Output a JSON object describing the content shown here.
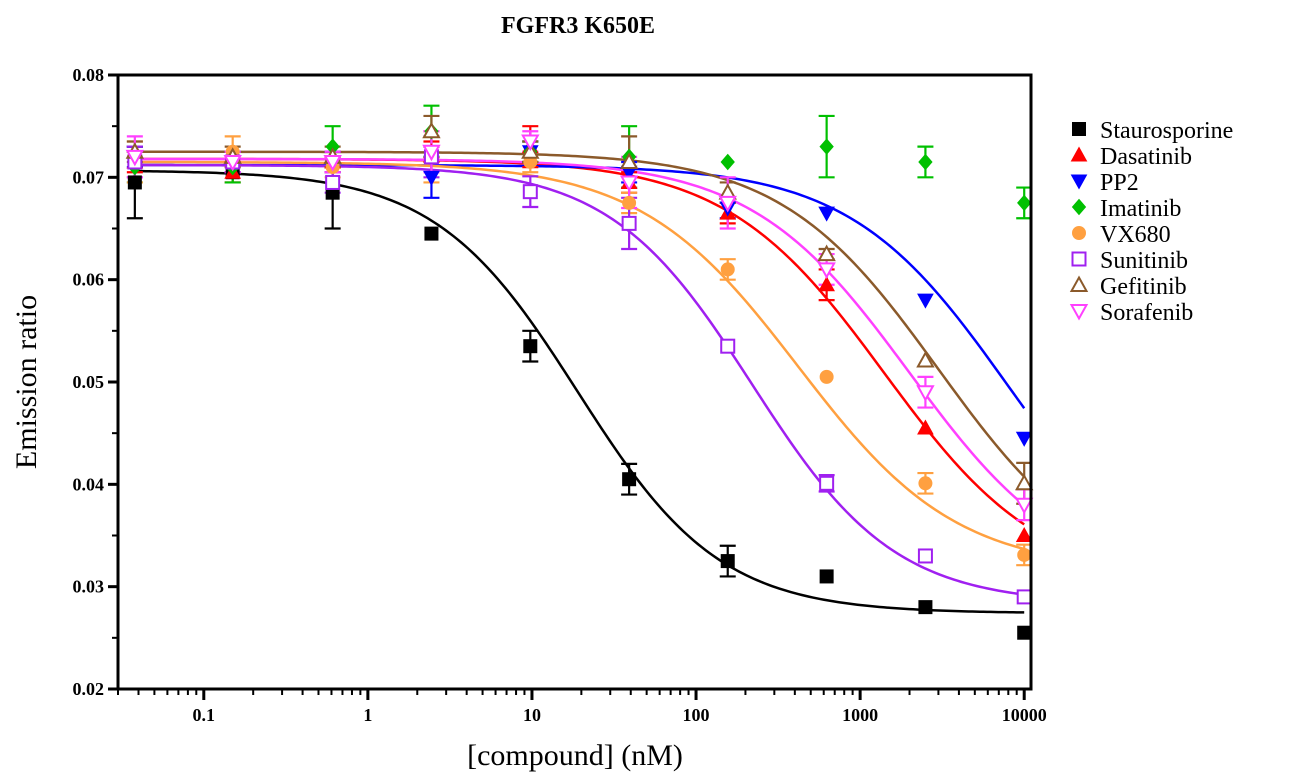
{
  "chart_data": {
    "type": "scatter",
    "title": "FGFR3 K650E",
    "xlabel": "[compound] (nM)",
    "ylabel": "Emission ratio",
    "x_scale": "log",
    "xlim": [
      0.03,
      11000
    ],
    "ylim": [
      0.02,
      0.08
    ],
    "x_ticks": [
      {
        "value": 0.1,
        "label": "0.1"
      },
      {
        "value": 1,
        "label": "1"
      },
      {
        "value": 10,
        "label": "10"
      },
      {
        "value": 100,
        "label": "100"
      },
      {
        "value": 1000,
        "label": "1000"
      },
      {
        "value": 10000,
        "label": "10000"
      }
    ],
    "y_ticks": [
      {
        "value": 0.02,
        "label": "0.02"
      },
      {
        "value": 0.03,
        "label": "0.03"
      },
      {
        "value": 0.04,
        "label": "0.04"
      },
      {
        "value": 0.05,
        "label": "0.05"
      },
      {
        "value": 0.06,
        "label": "0.06"
      },
      {
        "value": 0.07,
        "label": "0.07"
      },
      {
        "value": 0.08,
        "label": "0.08"
      }
    ],
    "grid": false,
    "legend_position": "right",
    "x": [
      0.038,
      0.15,
      0.61,
      2.44,
      9.77,
      39.1,
      156,
      625,
      2500,
      10000
    ],
    "series": [
      {
        "name": "Staurosporine",
        "color": "#000000",
        "marker": "square-filled",
        "values": [
          0.0695,
          0.0705,
          0.0685,
          0.0645,
          0.0535,
          0.0405,
          0.0325,
          0.031,
          0.028,
          0.0255
        ],
        "errors": [
          0.0035,
          0.0,
          0.0035,
          0.0,
          0.0015,
          0.0015,
          0.0015,
          0.0,
          0.0,
          0.0
        ],
        "fit": {
          "bottom": 0.0274,
          "top": 0.0707,
          "ec50": 19,
          "hill": 1.0
        }
      },
      {
        "name": "Dasatinib",
        "color": "#ff0000",
        "marker": "triangle-up-filled",
        "values": [
          0.0715,
          0.0705,
          0.0715,
          0.0725,
          0.073,
          0.0695,
          0.0665,
          0.0595,
          0.0455,
          0.035
        ],
        "errors": [
          0.001,
          0.001,
          0.001,
          0.001,
          0.002,
          0.001,
          0.001,
          0.0015,
          0.0,
          0.0
        ],
        "fit": {
          "bottom": 0.03,
          "top": 0.0718,
          "ec50": 1400,
          "hill": 0.9
        }
      },
      {
        "name": "PP2",
        "color": "#0000ff",
        "marker": "triangle-down-filled",
        "values": [
          0.072,
          0.0715,
          0.0715,
          0.07,
          0.0725,
          0.0705,
          0.067,
          0.0665,
          0.058,
          0.0445
        ],
        "errors": [
          0.001,
          0.001,
          0.001,
          0.002,
          0.001,
          0.001,
          0.001,
          0.0,
          0.0,
          0.0
        ],
        "fit": {
          "bottom": 0.028,
          "top": 0.0712,
          "ec50": 8000,
          "hill": 0.9
        }
      },
      {
        "name": "Imatinib",
        "color": "#00c000",
        "marker": "diamond-filled",
        "values": [
          0.071,
          0.071,
          0.073,
          0.0745,
          0.0725,
          0.072,
          0.0715,
          0.073,
          0.0715,
          0.0675
        ],
        "errors": [
          0.0015,
          0.0015,
          0.002,
          0.0025,
          0.001,
          0.003,
          0.0,
          0.003,
          0.0015,
          0.0015
        ],
        "fit": null
      },
      {
        "name": "VX680",
        "color": "#ffa040",
        "marker": "circle-filled",
        "values": [
          0.0715,
          0.0725,
          0.071,
          0.072,
          0.0715,
          0.0675,
          0.061,
          0.0505,
          0.0401,
          0.0331
        ],
        "errors": [
          0.002,
          0.0015,
          0.001,
          0.0025,
          0.001,
          0.001,
          0.001,
          0.0,
          0.001,
          0.001
        ],
        "fit": {
          "bottom": 0.0315,
          "top": 0.0715,
          "ec50": 420,
          "hill": 0.9
        }
      },
      {
        "name": "Sunitinib",
        "color": "#a020f0",
        "marker": "square-open",
        "values": [
          0.0715,
          0.0715,
          0.0695,
          0.072,
          0.0686,
          0.0655,
          0.0535,
          0.0401,
          0.033,
          0.029
        ],
        "errors": [
          0.0015,
          0.001,
          0.001,
          0.002,
          0.0015,
          0.0025,
          0.0,
          0.0008,
          0.0,
          0.0
        ],
        "fit": {
          "bottom": 0.0283,
          "top": 0.0712,
          "ec50": 220,
          "hill": 1.0
        }
      },
      {
        "name": "Gefitinib",
        "color": "#8b5a2b",
        "marker": "triangle-up-open",
        "values": [
          0.0725,
          0.072,
          0.072,
          0.0745,
          0.0725,
          0.0715,
          0.0685,
          0.0625,
          0.0521,
          0.0401
        ],
        "errors": [
          0.001,
          0.001,
          0.001,
          0.0015,
          0.001,
          0.0025,
          0.001,
          0.0005,
          0.0,
          0.002
        ],
        "fit": {
          "bottom": 0.03,
          "top": 0.0725,
          "ec50": 3000,
          "hill": 0.9
        }
      },
      {
        "name": "Sorafenib",
        "color": "#ff40ff",
        "marker": "triangle-down-open",
        "values": [
          0.072,
          0.0715,
          0.0715,
          0.0725,
          0.0735,
          0.0695,
          0.0675,
          0.061,
          0.049,
          0.038
        ],
        "errors": [
          0.002,
          0.001,
          0.001,
          0.002,
          0.001,
          0.0025,
          0.0025,
          0.0015,
          0.0015,
          0.0015
        ],
        "fit": {
          "bottom": 0.03,
          "top": 0.0718,
          "ec50": 2000,
          "hill": 0.9
        }
      }
    ]
  }
}
